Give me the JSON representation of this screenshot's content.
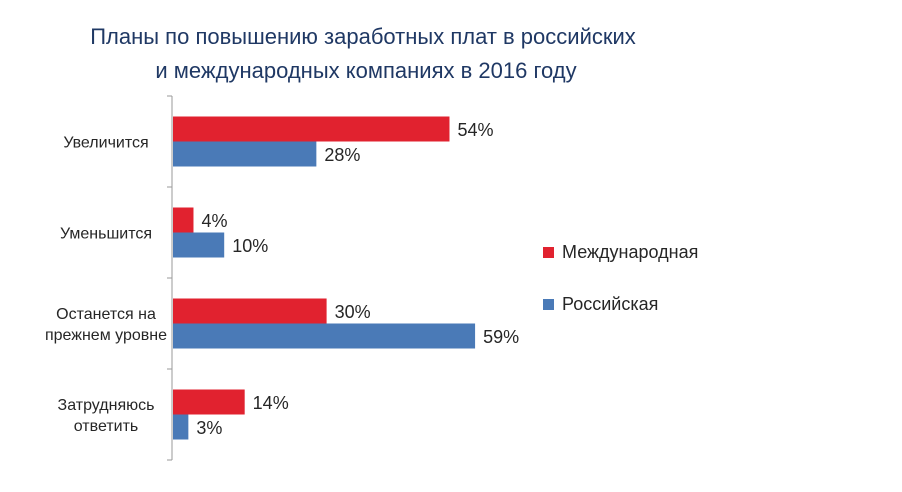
{
  "title_line1": "Планы по повышению заработных плат в российских",
  "title_line2": "и международных компаниях в 2016 году",
  "chart_data": {
    "type": "bar",
    "orientation": "horizontal",
    "categories": [
      [
        "Увеличится"
      ],
      [
        "Уменьшится"
      ],
      [
        "Останется на",
        "прежнем уровне"
      ],
      [
        "Затрудняюсь",
        "ответить"
      ]
    ],
    "series": [
      {
        "name": "Международная",
        "color": "#e1222f",
        "values": [
          54,
          4,
          30,
          14
        ]
      },
      {
        "name": "Российская",
        "color": "#4a7ab7",
        "values": [
          28,
          10,
          59,
          3
        ]
      }
    ],
    "value_suffix": "%",
    "xlim": [
      0,
      100
    ],
    "grid": false,
    "legend_position": "right"
  }
}
